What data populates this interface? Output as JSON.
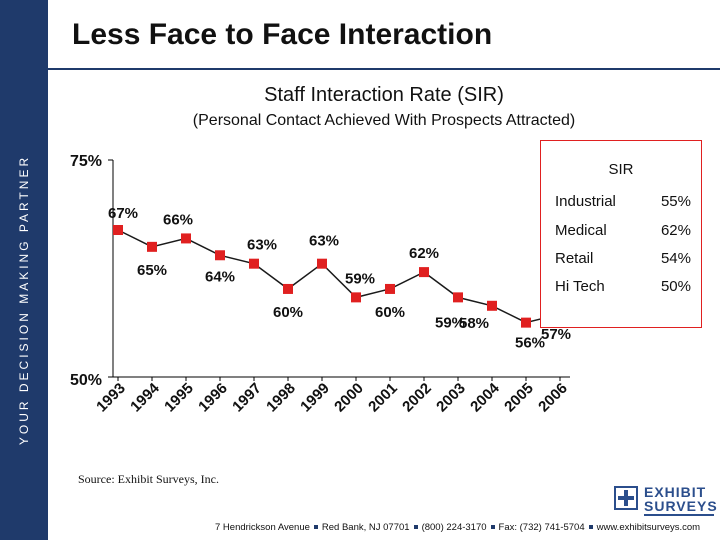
{
  "sidebar": {
    "text": "YOUR DECISION MAKING PARTNER"
  },
  "header": {
    "title": "Less Face to Face Interaction"
  },
  "chart_data": {
    "type": "line",
    "title": "Staff Interaction Rate (SIR)",
    "subtitle": "(Personal Contact Achieved With Prospects Attracted)",
    "categories": [
      "1993",
      "1994",
      "1995",
      "1996",
      "1997",
      "1998",
      "1999",
      "2000",
      "2001",
      "2002",
      "2003",
      "2004",
      "2005",
      "2006"
    ],
    "values": [
      67,
      65,
      66,
      64,
      63,
      60,
      63,
      59,
      60,
      62,
      59,
      58,
      56,
      57
    ],
    "data_labels": [
      "67%",
      "65%",
      "66%",
      "64%",
      "63%",
      "60%",
      "63%",
      "59%",
      "60%",
      "62%",
      "59%",
      "58%",
      "56%",
      "57%"
    ],
    "ylim": [
      50,
      75
    ],
    "y_tick_labels": [
      "75%",
      "50%"
    ],
    "series_color": "#e02020",
    "legend": {
      "title": "SIR",
      "entries": [
        {
          "label": "Industrial",
          "value": "55%"
        },
        {
          "label": "Medical",
          "value": "62%"
        },
        {
          "label": "Retail",
          "value": "54%"
        },
        {
          "label": "Hi Tech",
          "value": "50%"
        }
      ]
    }
  },
  "source": "Source: Exhibit Surveys, Inc.",
  "logo": {
    "line1": "EXHIBIT",
    "line2": "SURVEYS"
  },
  "footer": {
    "address": "7 Hendrickson Avenue",
    "city": "Red Bank, NJ 07701",
    "phone": "(800) 224-3170",
    "fax": "Fax: (732) 741-5704",
    "web": "www.exhibitsurveys.com"
  }
}
